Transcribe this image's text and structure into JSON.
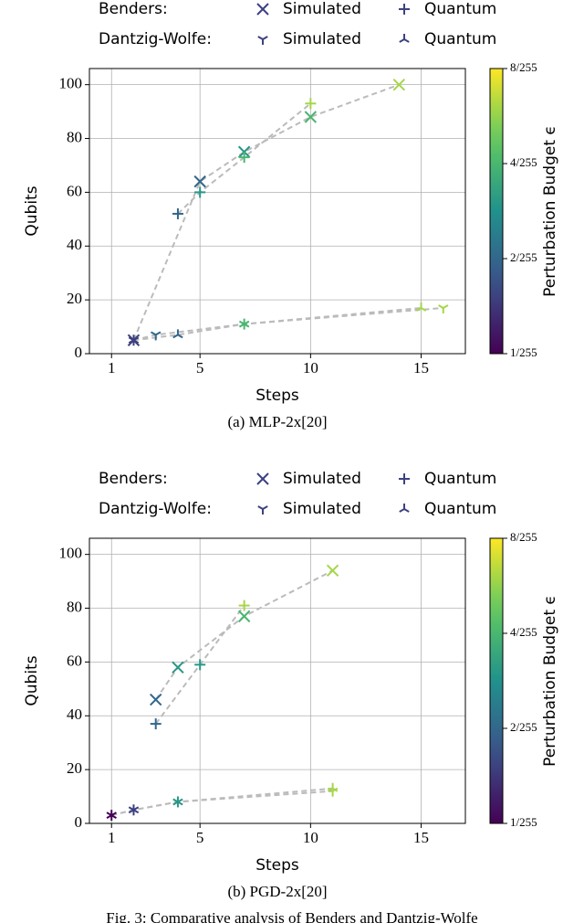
{
  "chart_data": [
    {
      "type": "scatter",
      "caption": "(a) MLP-2x[20]",
      "xlabel": "Steps",
      "ylabel": "Qubits",
      "xlim": [
        0,
        17
      ],
      "ylim": [
        0,
        106
      ],
      "xticks": [
        1,
        5,
        10,
        15
      ],
      "yticks": [
        0,
        20,
        40,
        60,
        80,
        100
      ],
      "grid": true,
      "legend": "top",
      "colormap": "viridis",
      "line_color": "#bbbbbb",
      "colorbar": {
        "label": "Perturbation Budget ϵ",
        "log": true,
        "lim": [
          0.003922,
          0.031373
        ],
        "ticks": [
          {
            "value": 0.003922,
            "label": "1/255"
          },
          {
            "value": 0.007843,
            "label": "2/255"
          },
          {
            "value": 0.015686,
            "label": "4/255"
          },
          {
            "value": 0.031373,
            "label": "8/255"
          }
        ]
      },
      "series": [
        {
          "group": "Benders:",
          "name": "Simulated",
          "marker": "x",
          "x": [
            2,
            5,
            7,
            10,
            14
          ],
          "y": [
            5,
            64,
            75,
            88,
            100
          ],
          "c": [
            0.00588,
            0.00784,
            0.01176,
            0.01569,
            0.02353
          ]
        },
        {
          "group": "Benders:",
          "name": "Quantum",
          "marker": "plus",
          "x": [
            4,
            5,
            7,
            10
          ],
          "y": [
            52,
            60,
            73,
            93
          ],
          "c": [
            0.00784,
            0.01176,
            0.01569,
            0.02353
          ]
        },
        {
          "group": "Dantzig-Wolfe:",
          "name": "Simulated",
          "marker": "tri_down",
          "x": [
            2,
            3,
            7,
            16
          ],
          "y": [
            5,
            7,
            11,
            17
          ],
          "c": [
            0.00588,
            0.00784,
            0.01569,
            0.02353
          ]
        },
        {
          "group": "Dantzig-Wolfe:",
          "name": "Quantum",
          "marker": "tri_up",
          "x": [
            2,
            4,
            7,
            15
          ],
          "y": [
            5,
            7,
            11,
            17
          ],
          "c": [
            0.00588,
            0.00784,
            0.01569,
            0.02353
          ]
        }
      ]
    },
    {
      "type": "scatter",
      "caption": "(b) PGD-2x[20]",
      "xlabel": "Steps",
      "ylabel": "Qubits",
      "xlim": [
        0,
        17
      ],
      "ylim": [
        0,
        106
      ],
      "xticks": [
        1,
        5,
        10,
        15
      ],
      "yticks": [
        0,
        20,
        40,
        60,
        80,
        100
      ],
      "grid": true,
      "legend": "top",
      "colormap": "viridis",
      "line_color": "#bbbbbb",
      "colorbar": {
        "label": "Perturbation Budget ϵ",
        "log": true,
        "lim": [
          0.003922,
          0.031373
        ],
        "ticks": [
          {
            "value": 0.003922,
            "label": "1/255"
          },
          {
            "value": 0.007843,
            "label": "2/255"
          },
          {
            "value": 0.015686,
            "label": "4/255"
          },
          {
            "value": 0.031373,
            "label": "8/255"
          }
        ]
      },
      "series": [
        {
          "group": "Benders:",
          "name": "Simulated",
          "marker": "x",
          "x": [
            3,
            4,
            7,
            11
          ],
          "y": [
            46,
            58,
            77,
            94
          ],
          "c": [
            0.00784,
            0.01176,
            0.01569,
            0.02353
          ]
        },
        {
          "group": "Benders:",
          "name": "Quantum",
          "marker": "plus",
          "x": [
            3,
            5,
            7
          ],
          "y": [
            37,
            59,
            81
          ],
          "c": [
            0.00784,
            0.01176,
            0.02353
          ]
        },
        {
          "group": "Dantzig-Wolfe:",
          "name": "Simulated",
          "marker": "tri_down",
          "x": [
            1,
            2,
            4,
            11
          ],
          "y": [
            3,
            5,
            8,
            12
          ],
          "c": [
            0.00392,
            0.00588,
            0.01176,
            0.02353
          ]
        },
        {
          "group": "Dantzig-Wolfe:",
          "name": "Quantum",
          "marker": "tri_up",
          "x": [
            1,
            2,
            4,
            11
          ],
          "y": [
            3,
            5,
            8,
            13
          ],
          "c": [
            0.00392,
            0.00588,
            0.01176,
            0.02353
          ]
        }
      ]
    }
  ],
  "figure_caption": "Fig. 3: Comparative analysis of Benders and Dantzig-Wolfe"
}
